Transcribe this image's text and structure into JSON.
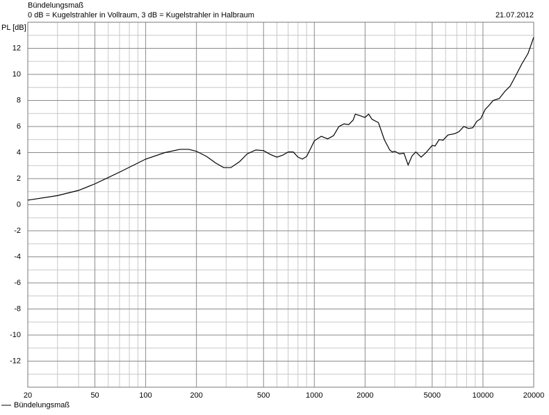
{
  "chart_data": {
    "type": "line",
    "title": "Bündelungsmaß",
    "subtitle": "0 dB = Kugelstrahler in Vollraum, 3 dB = Kugelstrahler in Halbraum",
    "date": "21.07.2012",
    "y_label": "PL [dB]",
    "log_x": true,
    "grid": true,
    "legend": "bottom-left",
    "xlim": [
      20,
      20000
    ],
    "ylim": [
      -14,
      14
    ],
    "xticks": [
      20,
      50,
      100,
      200,
      500,
      1000,
      2000,
      5000,
      10000,
      20000
    ],
    "xminor": [
      30,
      40,
      60,
      70,
      80,
      90,
      300,
      400,
      600,
      700,
      800,
      900,
      3000,
      4000,
      6000,
      7000,
      8000,
      9000
    ],
    "yticks": [
      -12,
      -10,
      -8,
      -6,
      -4,
      -2,
      0,
      2,
      4,
      6,
      8,
      10,
      12
    ],
    "yminor": [
      -13,
      -11,
      -9,
      -7,
      -5,
      -3,
      -1,
      1,
      3,
      5,
      7,
      9,
      11,
      13
    ],
    "x": [
      20,
      30,
      40,
      50,
      70,
      100,
      130,
      160,
      180,
      200,
      230,
      260,
      290,
      320,
      360,
      400,
      450,
      500,
      550,
      600,
      650,
      700,
      750,
      800,
      850,
      900,
      950,
      1000,
      1100,
      1200,
      1300,
      1400,
      1500,
      1600,
      1700,
      1750,
      1850,
      2000,
      2100,
      2200,
      2400,
      2600,
      2800,
      2900,
      3000,
      3200,
      3400,
      3600,
      3800,
      4000,
      4300,
      4600,
      5000,
      5200,
      5500,
      5800,
      6200,
      6800,
      7200,
      7700,
      8200,
      8700,
      9200,
      9700,
      10300,
      11000,
      11500,
      12500,
      13500,
      14500,
      15500,
      17000,
      18500,
      20000
    ],
    "series": [
      {
        "name": "Bündelungsmaß",
        "color": "#000000",
        "values": [
          0.35,
          0.7,
          1.1,
          1.6,
          2.5,
          3.5,
          4.0,
          4.25,
          4.25,
          4.1,
          3.7,
          3.2,
          2.85,
          2.85,
          3.3,
          3.9,
          4.2,
          4.15,
          3.85,
          3.65,
          3.8,
          4.05,
          4.05,
          3.65,
          3.5,
          3.7,
          4.3,
          4.9,
          5.25,
          5.05,
          5.3,
          6.0,
          6.2,
          6.15,
          6.5,
          6.95,
          6.85,
          6.7,
          6.95,
          6.55,
          6.3,
          5.0,
          4.2,
          4.05,
          4.1,
          3.9,
          3.95,
          3.05,
          3.75,
          4.05,
          3.65,
          4.0,
          4.55,
          4.5,
          5.0,
          4.95,
          5.35,
          5.45,
          5.6,
          6.0,
          5.85,
          5.9,
          6.4,
          6.6,
          7.3,
          7.7,
          8.0,
          8.15,
          8.7,
          9.1,
          9.8,
          10.8,
          11.6,
          12.85
        ]
      }
    ]
  }
}
